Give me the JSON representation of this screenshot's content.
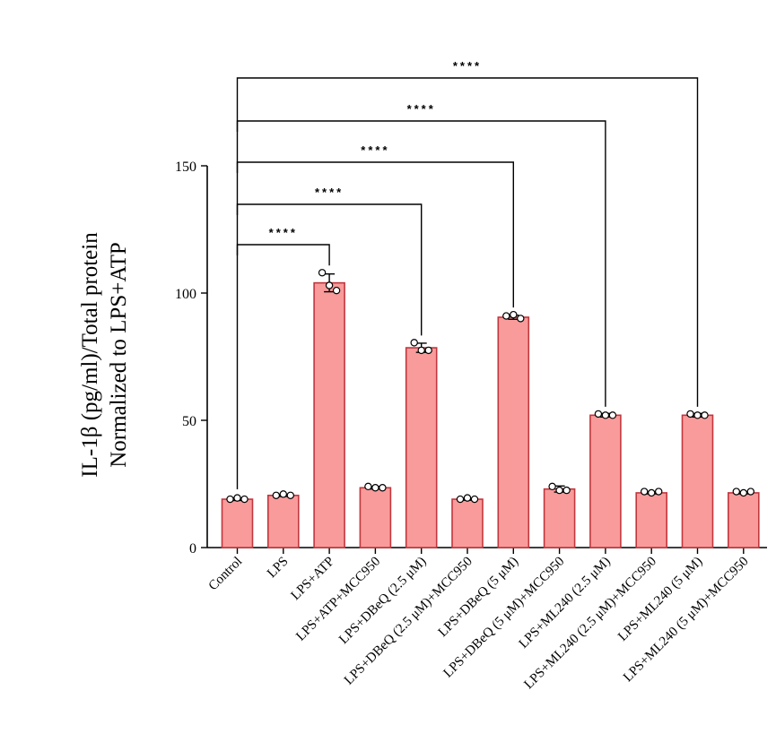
{
  "chart_data": {
    "type": "bar",
    "ylabel_line1": "IL-1β (pg/ml)/Total protein",
    "ylabel_line2": "Normalized to LPS+ATP",
    "ylim": [
      0,
      150
    ],
    "yticks": [
      0,
      50,
      100,
      150
    ],
    "categories": [
      "Control",
      "LPS",
      "LPS+ATP",
      "LPS+ATP+MCC950",
      "LPS+DBeQ (2.5 μM)",
      "LPS+DBeQ (2.5 μM)+MCC950",
      "LPS+DBeQ (5 μM)",
      "LPS+DBeQ (5 μM)+MCC950",
      "LPS+ML240 (2.5 μM)",
      "LPS+ML240 (2.5 μM)+MCC950",
      "LPS+ML240 (5 μM)",
      "LPS+ML240 (5 μM)+MCC950"
    ],
    "values": [
      19,
      20.5,
      104,
      23.5,
      78.5,
      19,
      90.5,
      23,
      52,
      21.5,
      52,
      21.5
    ],
    "errors": [
      0.5,
      0.4,
      3.5,
      0.5,
      1.8,
      0.4,
      0.8,
      1.2,
      0.7,
      0.4,
      0.7,
      0.4
    ],
    "points": [
      [
        19,
        19.5,
        19
      ],
      [
        20.5,
        21,
        20.5
      ],
      [
        108,
        103,
        101
      ],
      [
        24,
        23.5,
        23.5
      ],
      [
        80.5,
        77.5,
        77.5
      ],
      [
        19,
        19.5,
        19
      ],
      [
        91,
        91.5,
        90
      ],
      [
        24,
        22.5,
        22.5
      ],
      [
        52.5,
        52,
        52
      ],
      [
        22,
        21.5,
        22
      ],
      [
        52.5,
        52,
        52
      ],
      [
        22,
        21.5,
        22
      ]
    ],
    "bar_color": "#f99b9b",
    "bar_edge_color": "#c0373e",
    "comparisons": [
      {
        "from": 0,
        "to": 2,
        "label": "****"
      },
      {
        "from": 0,
        "to": 4,
        "label": "****"
      },
      {
        "from": 0,
        "to": 6,
        "label": "****"
      },
      {
        "from": 0,
        "to": 8,
        "label": "****"
      },
      {
        "from": 0,
        "to": 10,
        "label": "****"
      }
    ]
  }
}
